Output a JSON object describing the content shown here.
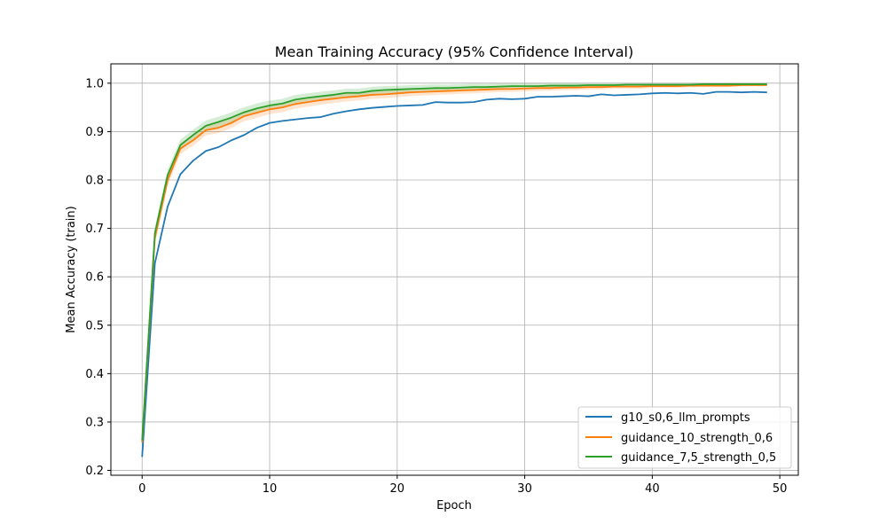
{
  "chart_data": {
    "type": "line",
    "title": "Mean Training Accuracy (95% Confidence Interval)",
    "xlabel": "Epoch",
    "ylabel": "Mean Accuracy (train)",
    "xlim": [
      -2.45,
      51.45
    ],
    "ylim": [
      0.19,
      1.04
    ],
    "xticks": [
      0,
      10,
      20,
      30,
      40,
      50
    ],
    "yticks": [
      0.2,
      0.3,
      0.4,
      0.5,
      0.6,
      0.7,
      0.8,
      0.9,
      1.0
    ],
    "ytick_labels": [
      "0.2",
      "0.3",
      "0.4",
      "0.5",
      "0.6",
      "0.7",
      "0.8",
      "0.9",
      "1.0"
    ],
    "grid": true,
    "legend_position": "lower-right",
    "series": [
      {
        "name": "g10_s0,6_llm_prompts",
        "color": "#1f77b4",
        "ci_halfwidth": 0,
        "values": [
          0.228,
          0.628,
          0.745,
          0.812,
          0.84,
          0.86,
          0.868,
          0.882,
          0.893,
          0.908,
          0.918,
          0.922,
          0.925,
          0.928,
          0.93,
          0.937,
          0.942,
          0.946,
          0.949,
          0.951,
          0.953,
          0.954,
          0.955,
          0.961,
          0.96,
          0.96,
          0.961,
          0.966,
          0.968,
          0.967,
          0.968,
          0.972,
          0.972,
          0.973,
          0.974,
          0.973,
          0.977,
          0.975,
          0.976,
          0.977,
          0.979,
          0.98,
          0.979,
          0.98,
          0.978,
          0.982,
          0.982,
          0.981,
          0.982,
          0.981
        ]
      },
      {
        "name": "guidance_10_strength_0,6",
        "color": "#ff7f0e",
        "ci_halfwidth": 0.012,
        "values": [
          0.258,
          0.68,
          0.8,
          0.865,
          0.882,
          0.903,
          0.908,
          0.918,
          0.932,
          0.939,
          0.946,
          0.95,
          0.957,
          0.961,
          0.965,
          0.968,
          0.971,
          0.973,
          0.976,
          0.977,
          0.979,
          0.981,
          0.982,
          0.983,
          0.984,
          0.985,
          0.986,
          0.987,
          0.988,
          0.988,
          0.989,
          0.99,
          0.99,
          0.991,
          0.991,
          0.992,
          0.992,
          0.993,
          0.993,
          0.993,
          0.994,
          0.994,
          0.994,
          0.995,
          0.995,
          0.995,
          0.995,
          0.996,
          0.996,
          0.996
        ]
      },
      {
        "name": "guidance_7,5_strength_0,5",
        "color": "#2ca02c",
        "ci_halfwidth": 0.012,
        "values": [
          0.262,
          0.69,
          0.81,
          0.872,
          0.893,
          0.912,
          0.92,
          0.929,
          0.94,
          0.948,
          0.954,
          0.958,
          0.966,
          0.97,
          0.973,
          0.976,
          0.98,
          0.98,
          0.984,
          0.986,
          0.987,
          0.988,
          0.989,
          0.99,
          0.99,
          0.991,
          0.992,
          0.992,
          0.993,
          0.994,
          0.994,
          0.994,
          0.995,
          0.995,
          0.995,
          0.996,
          0.996,
          0.996,
          0.997,
          0.997,
          0.997,
          0.997,
          0.997,
          0.997,
          0.998,
          0.998,
          0.998,
          0.998,
          0.998,
          0.998
        ]
      }
    ]
  }
}
